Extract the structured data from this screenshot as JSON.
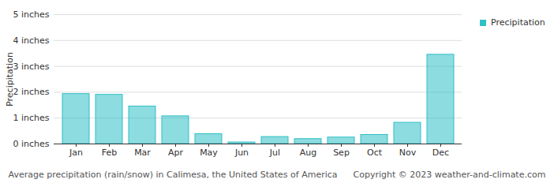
{
  "chart_data": {
    "type": "bar",
    "title": "Average precipitation (rain/snow) in Calimesa, the United States of America",
    "source": "Copyright © 2023  weather-and-climate.com",
    "y_label": "Precipitation",
    "categories": [
      "Jan",
      "Feb",
      "Mar",
      "Apr",
      "May",
      "Jun",
      "Jul",
      "Aug",
      "Sep",
      "Oct",
      "Nov",
      "Dec"
    ],
    "series": [
      {
        "name": "Precipitation",
        "color": "#2fbfc6",
        "values": [
          1.93,
          1.9,
          1.45,
          1.07,
          0.38,
          0.06,
          0.27,
          0.19,
          0.25,
          0.35,
          0.82,
          3.45
        ]
      }
    ],
    "ylim": [
      0,
      5
    ],
    "yticks": [
      {
        "value": 0,
        "label": "0 inches"
      },
      {
        "value": 1,
        "label": "1 inches"
      },
      {
        "value": 2,
        "label": "2 inches"
      },
      {
        "value": 3,
        "label": "3 inches"
      },
      {
        "value": 4,
        "label": "4 inches"
      },
      {
        "value": 5,
        "label": "5 inches"
      }
    ],
    "grid": true,
    "legend": "top-right"
  }
}
